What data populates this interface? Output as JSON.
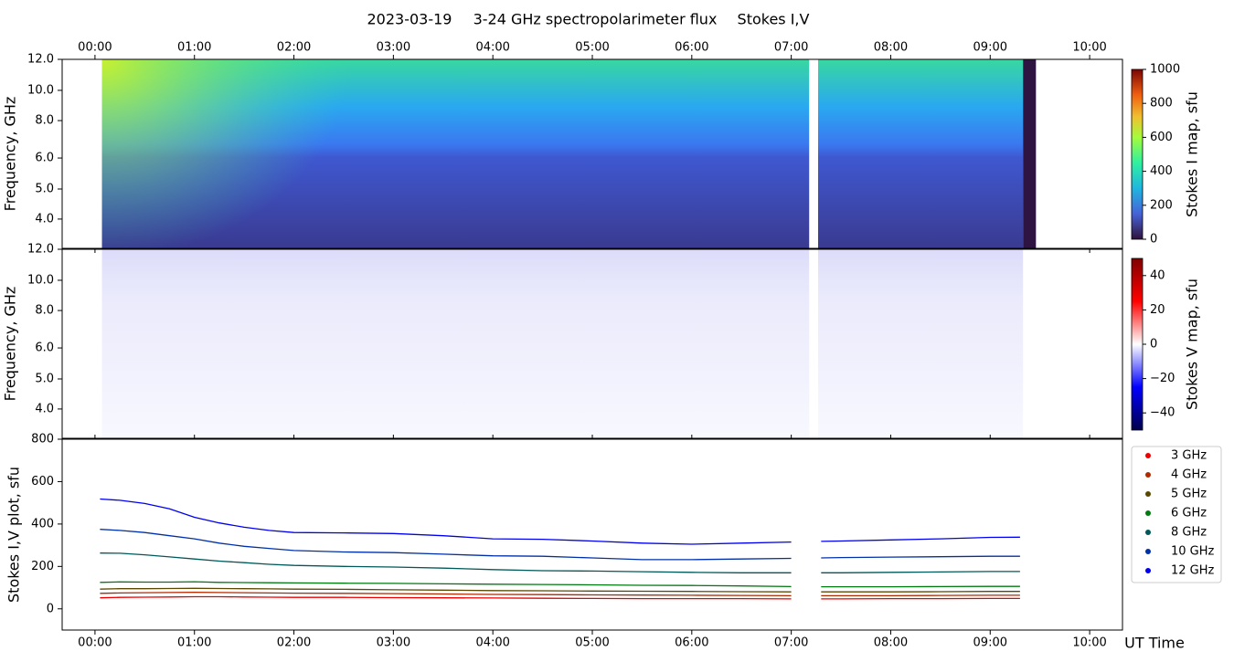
{
  "title": {
    "date": "2023-03-19",
    "description": "3-24 GHz spectropolarimeter flux",
    "stokes": "Stokes I,V"
  },
  "chart_data": [
    {
      "type": "heatmap",
      "ylabel": "Frequency, GHz",
      "xlim": [
        -0.33,
        10.33
      ],
      "xticks": [
        {
          "value": 0,
          "label": "00:00"
        },
        {
          "value": 1,
          "label": "01:00"
        },
        {
          "value": 2,
          "label": "02:00"
        },
        {
          "value": 3,
          "label": "03:00"
        },
        {
          "value": 4,
          "label": "04:00"
        },
        {
          "value": 5,
          "label": "05:00"
        },
        {
          "value": 6,
          "label": "06:00"
        },
        {
          "value": 7,
          "label": "07:00"
        },
        {
          "value": 8,
          "label": "08:00"
        },
        {
          "value": 9,
          "label": "09:00"
        },
        {
          "value": 10,
          "label": "10:00"
        }
      ],
      "ylim": [
        3,
        12
      ],
      "yticks": [
        {
          "value": 12,
          "label": "12.0"
        },
        {
          "value": 10,
          "label": "10.0"
        },
        {
          "value": 8,
          "label": "8.0"
        },
        {
          "value": 6,
          "label": "6.0"
        },
        {
          "value": 5,
          "label": "5.0"
        },
        {
          "value": 4,
          "label": "4.0"
        }
      ],
      "colorbar": {
        "label": "Stokes I map, sfu",
        "lim": [
          0,
          1000
        ],
        "ticks": [
          0,
          200,
          400,
          600,
          800,
          1000
        ]
      }
    },
    {
      "type": "heatmap",
      "ylabel": "Frequency, GHz",
      "xlim": [
        -0.33,
        10.33
      ],
      "ylim": [
        3,
        12
      ],
      "yticks": [
        {
          "value": 12,
          "label": "12.0"
        },
        {
          "value": 10,
          "label": "10.0"
        },
        {
          "value": 8,
          "label": "8.0"
        },
        {
          "value": 6,
          "label": "6.0"
        },
        {
          "value": 5,
          "label": "5.0"
        },
        {
          "value": 4,
          "label": "4.0"
        }
      ],
      "colorbar": {
        "label": "Stokes V map, sfu",
        "lim": [
          -50,
          50
        ],
        "ticks": [
          {
            "value": -40,
            "label": "−40"
          },
          {
            "value": -20,
            "label": "−20"
          },
          0,
          20,
          40
        ]
      }
    },
    {
      "type": "line",
      "ylabel": "Stokes I,V plot, sfu",
      "xlabel": "UT Time",
      "xlim": [
        -0.33,
        10.33
      ],
      "xticks": [
        {
          "value": 0,
          "label": "00:00"
        },
        {
          "value": 1,
          "label": "01:00"
        },
        {
          "value": 2,
          "label": "02:00"
        },
        {
          "value": 3,
          "label": "03:00"
        },
        {
          "value": 4,
          "label": "04:00"
        },
        {
          "value": 5,
          "label": "05:00"
        },
        {
          "value": 6,
          "label": "06:00"
        },
        {
          "value": 7,
          "label": "07:00"
        },
        {
          "value": 8,
          "label": "08:00"
        },
        {
          "value": 9,
          "label": "09:00"
        },
        {
          "value": 10,
          "label": "10:00"
        }
      ],
      "ylim": [
        -100,
        800
      ],
      "yticks": [
        0,
        200,
        400,
        600,
        800
      ],
      "legend": "right",
      "x": [
        0.05,
        0.25,
        0.5,
        0.75,
        1,
        1.25,
        1.5,
        1.75,
        2,
        2.5,
        3,
        3.5,
        4,
        4.5,
        5,
        5.5,
        6,
        6.5,
        7,
        7.22,
        7.3,
        7.5,
        8,
        8.5,
        9,
        9.3
      ],
      "series": [
        {
          "name": "3 GHz",
          "color": "#ee0000",
          "values": [
            52,
            54,
            55,
            56,
            57,
            57,
            56,
            55,
            54,
            54,
            53,
            52,
            51,
            50,
            49,
            48,
            48,
            48,
            47,
            null,
            47,
            47,
            48,
            48,
            49,
            49
          ]
        },
        {
          "name": "4 GHz",
          "color": "#b02a00",
          "values": [
            73,
            75,
            76,
            77,
            78,
            77,
            76,
            75,
            74,
            73,
            72,
            70,
            68,
            67,
            66,
            65,
            64,
            63,
            62,
            null,
            62,
            62,
            62,
            63,
            64,
            64
          ]
        },
        {
          "name": "5 GHz",
          "color": "#5a4800",
          "values": [
            93,
            95,
            95,
            96,
            97,
            96,
            95,
            94,
            93,
            92,
            90,
            88,
            86,
            85,
            84,
            83,
            82,
            81,
            80,
            null,
            80,
            80,
            80,
            81,
            82,
            82
          ]
        },
        {
          "name": "6 GHz",
          "color": "#007a10",
          "values": [
            125,
            127,
            126,
            126,
            128,
            125,
            124,
            123,
            122,
            121,
            120,
            118,
            116,
            115,
            113,
            111,
            110,
            108,
            105,
            null,
            104,
            104,
            104,
            105,
            106,
            106
          ]
        },
        {
          "name": "8 GHz",
          "color": "#005858",
          "values": [
            263,
            262,
            255,
            245,
            235,
            225,
            218,
            210,
            205,
            200,
            197,
            192,
            185,
            180,
            178,
            175,
            172,
            170,
            170,
            null,
            170,
            170,
            172,
            174,
            176,
            176
          ]
        },
        {
          "name": "10 GHz",
          "color": "#0030a8",
          "values": [
            375,
            370,
            360,
            345,
            330,
            310,
            295,
            285,
            275,
            268,
            265,
            258,
            250,
            248,
            240,
            232,
            232,
            235,
            238,
            null,
            240,
            242,
            244,
            246,
            248,
            248
          ]
        },
        {
          "name": "12 GHz",
          "color": "#0000f0",
          "values": [
            518,
            512,
            497,
            472,
            432,
            405,
            385,
            370,
            360,
            358,
            355,
            345,
            330,
            328,
            320,
            310,
            305,
            310,
            315,
            null,
            318,
            320,
            325,
            330,
            337,
            338
          ]
        }
      ]
    }
  ]
}
